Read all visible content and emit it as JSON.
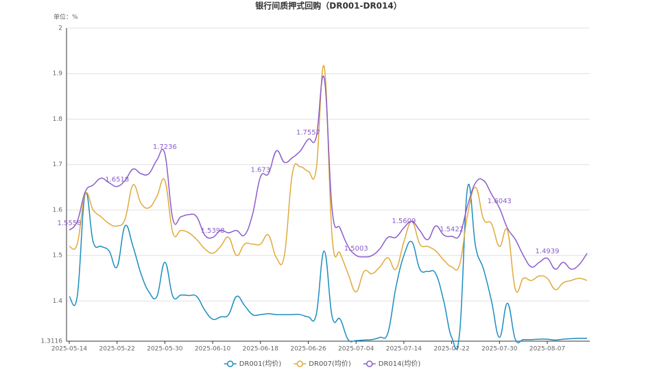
{
  "chart_data": {
    "type": "line",
    "title": "银行间质押式回购（DR001-DR014）",
    "y_unit": "单位：%",
    "categories": [
      "2025-05-14",
      null,
      null,
      null,
      null,
      null,
      "2025-05-22",
      null,
      null,
      null,
      null,
      null,
      "2025-05-30",
      null,
      null,
      null,
      null,
      null,
      "2025-06-10",
      null,
      null,
      null,
      null,
      null,
      "2025-06-18",
      null,
      null,
      null,
      null,
      null,
      "2025-06-26",
      null,
      null,
      null,
      null,
      null,
      "2025-07-04",
      null,
      null,
      null,
      null,
      null,
      "2025-07-14",
      null,
      null,
      null,
      null,
      null,
      "2025-07-22",
      null,
      null,
      null,
      null,
      null,
      "2025-07-30",
      null,
      null,
      null,
      null,
      null,
      "2025-08-07",
      null,
      null,
      null,
      null,
      null
    ],
    "ylim": [
      1.3116,
      2
    ],
    "yticks": [
      1.3116,
      1.4,
      1.5,
      1.6,
      1.7,
      1.8,
      1.9,
      2
    ],
    "grid": true,
    "smooth": true,
    "legend": "bottom",
    "series": [
      {
        "name": "DR001(均价)",
        "color": "#1a8cbf",
        "values": [
          1.41,
          1.41,
          1.635,
          1.53,
          1.52,
          1.51,
          1.475,
          1.565,
          1.52,
          1.46,
          1.42,
          1.41,
          1.485,
          1.41,
          1.413,
          1.412,
          1.41,
          1.38,
          1.36,
          1.365,
          1.37,
          1.41,
          1.39,
          1.37,
          1.37,
          1.372,
          1.37,
          1.37,
          1.37,
          1.37,
          1.365,
          1.37,
          1.51,
          1.365,
          1.36,
          1.315,
          1.313,
          1.314,
          1.315,
          1.32,
          1.33,
          1.43,
          1.5,
          1.53,
          1.47,
          1.465,
          1.46,
          1.4,
          1.32,
          1.33,
          1.65,
          1.52,
          1.47,
          1.4,
          1.32,
          1.395,
          1.315,
          1.315,
          1.315,
          1.316,
          1.316,
          1.314,
          1.316,
          1.317,
          1.318,
          1.318
        ]
      },
      {
        "name": "DR007(均价)",
        "color": "#e0a93a",
        "values": [
          1.52,
          1.525,
          1.635,
          1.6,
          1.585,
          1.57,
          1.565,
          1.58,
          1.655,
          1.615,
          1.605,
          1.63,
          1.665,
          1.55,
          1.555,
          1.55,
          1.535,
          1.515,
          1.505,
          1.52,
          1.54,
          1.5,
          1.525,
          1.525,
          1.525,
          1.545,
          1.495,
          1.5,
          1.68,
          1.695,
          1.685,
          1.69,
          1.915,
          1.54,
          1.505,
          1.46,
          1.42,
          1.465,
          1.46,
          1.475,
          1.495,
          1.47,
          1.53,
          1.575,
          1.525,
          1.52,
          1.51,
          1.49,
          1.475,
          1.48,
          1.59,
          1.65,
          1.58,
          1.57,
          1.52,
          1.555,
          1.425,
          1.45,
          1.445,
          1.455,
          1.45,
          1.425,
          1.44,
          1.445,
          1.45,
          1.445
        ]
      },
      {
        "name": "DR014(均价)",
        "color": "#8a5cc9",
        "label_interval": 6,
        "values": [
          1.5558,
          1.575,
          1.64,
          1.655,
          1.67,
          1.66,
          1.6518,
          1.665,
          1.69,
          1.68,
          1.68,
          1.71,
          1.7236,
          1.58,
          1.585,
          1.59,
          1.585,
          1.545,
          1.5398,
          1.555,
          1.55,
          1.555,
          1.545,
          1.59,
          1.673,
          1.68,
          1.73,
          1.705,
          1.715,
          1.73,
          1.7557,
          1.76,
          1.89,
          1.6,
          1.56,
          1.52,
          1.5003,
          1.497,
          1.5,
          1.515,
          1.54,
          1.54,
          1.5609,
          1.575,
          1.555,
          1.535,
          1.565,
          1.545,
          1.5422,
          1.545,
          1.61,
          1.66,
          1.665,
          1.635,
          1.6043,
          1.56,
          1.535,
          1.5,
          1.475,
          1.485,
          1.4939,
          1.47,
          1.485,
          1.47,
          1.48,
          1.505
        ]
      }
    ]
  }
}
